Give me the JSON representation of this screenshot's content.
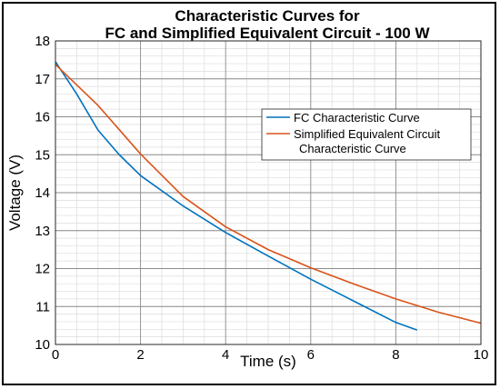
{
  "chart_data": {
    "type": "line",
    "title": "Characteristic Curves for",
    "subtitle": "FC and Simplified Equivalent Circuit - 100 W",
    "xlabel": "Time (s)",
    "ylabel": "Voltage (V)",
    "xlim": [
      0,
      10
    ],
    "ylim": [
      10,
      18
    ],
    "xticks": [
      0,
      2,
      4,
      6,
      8,
      10
    ],
    "yticks": [
      10,
      11,
      12,
      13,
      14,
      15,
      16,
      17,
      18
    ],
    "grid": "major and minor",
    "legend_position": "right",
    "series": [
      {
        "name": "FC Characteristic Curve",
        "color": "#0072BD",
        "x": [
          0,
          0.5,
          1,
          1.5,
          2,
          3,
          4,
          5,
          6,
          7,
          8,
          8.5
        ],
        "y": [
          17.45,
          16.6,
          15.65,
          15.0,
          14.45,
          13.65,
          12.95,
          12.33,
          11.72,
          11.15,
          10.58,
          10.38
        ]
      },
      {
        "name_lines": [
          "Simplified Equivalent Circuit",
          "Characteristic Curve"
        ],
        "color": "#D95319",
        "x": [
          0,
          1,
          2,
          3,
          4,
          5,
          6,
          7,
          8,
          9,
          10
        ],
        "y": [
          17.38,
          16.3,
          15.02,
          13.9,
          13.1,
          12.5,
          12.02,
          11.6,
          11.2,
          10.85,
          10.56
        ]
      }
    ]
  }
}
